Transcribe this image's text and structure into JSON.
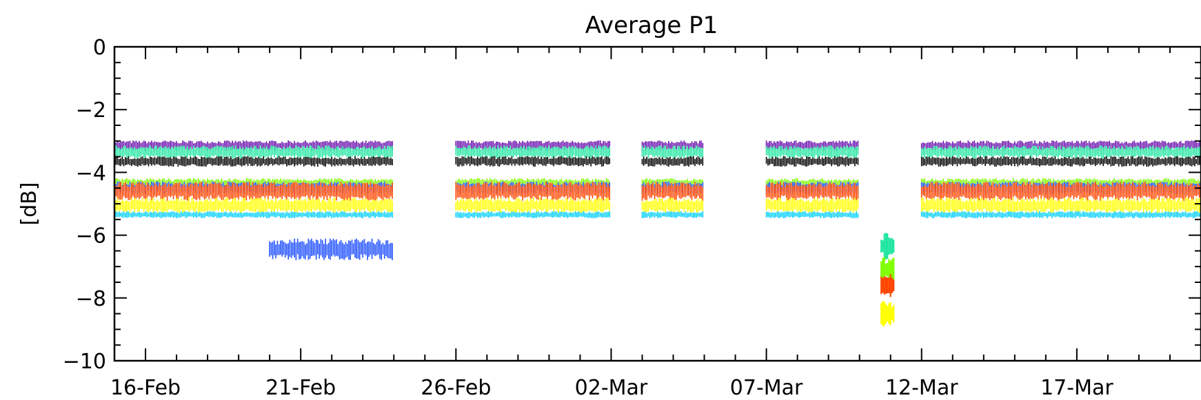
{
  "chart_data": {
    "type": "scatter",
    "title": "Average P1",
    "xlabel": "",
    "ylabel": "[dB]",
    "x_range": [
      "2024-02-15",
      "2024-03-21"
    ],
    "xticks": [
      {
        "date": "2024-02-16",
        "label": "16-Feb"
      },
      {
        "date": "2024-02-21",
        "label": "21-Feb"
      },
      {
        "date": "2024-02-26",
        "label": "26-Feb"
      },
      {
        "date": "2024-03-02",
        "label": "02-Mar"
      },
      {
        "date": "2024-03-07",
        "label": "07-Mar"
      },
      {
        "date": "2024-03-12",
        "label": "12-Mar"
      },
      {
        "date": "2024-03-17",
        "label": "17-Mar"
      }
    ],
    "ylim": [
      -10,
      0
    ],
    "yticks": [
      {
        "value": 0,
        "label": "0"
      },
      {
        "value": -2,
        "label": "−2"
      },
      {
        "value": -4,
        "label": "−4"
      },
      {
        "value": -6,
        "label": "−6"
      },
      {
        "value": -8,
        "label": "−8"
      },
      {
        "value": -10,
        "label": "−10"
      }
    ],
    "gaps": [
      [
        "2024-02-24",
        "2024-02-25"
      ],
      [
        "2024-03-02",
        "2024-03-02"
      ],
      [
        "2024-03-05",
        "2024-03-06"
      ],
      [
        "2024-03-10",
        "2024-03-11"
      ]
    ],
    "series": [
      {
        "color": "#6a0dad",
        "level": -3.15,
        "spread": 0.12,
        "start": "2024-02-15",
        "end": "2024-03-21"
      },
      {
        "color": "#22e6a0",
        "level": -3.35,
        "spread": 0.15,
        "start": "2024-02-15",
        "end": "2024-03-21"
      },
      {
        "color": "#000000",
        "level": -3.65,
        "spread": 0.12,
        "start": "2024-02-15",
        "end": "2024-03-21"
      },
      {
        "color": "#7fff00",
        "level": -4.35,
        "spread": 0.12,
        "start": "2024-02-15",
        "end": "2024-03-21"
      },
      {
        "color": "#1f4fff",
        "level": -4.5,
        "spread": 0.15,
        "start": "2024-02-15",
        "end": "2024-03-21"
      },
      {
        "color": "#ff4500",
        "level": -4.6,
        "spread": 0.22,
        "start": "2024-02-15",
        "end": "2024-03-21"
      },
      {
        "color": "#ffff00",
        "level": -5.05,
        "spread": 0.18,
        "start": "2024-02-15",
        "end": "2024-03-21"
      },
      {
        "color": "#00cfff",
        "level": -5.35,
        "spread": 0.08,
        "start": "2024-02-15",
        "end": "2024-03-21"
      },
      {
        "color": "#1f4fff",
        "level": -6.45,
        "spread": 0.25,
        "start": "2024-02-20",
        "end": "2024-02-23"
      }
    ],
    "outliers": [
      {
        "color": "#22e6a0",
        "level": -6.35,
        "start": "2024-03-10",
        "end": "2024-03-11"
      },
      {
        "color": "#7fff00",
        "level": -7.1,
        "start": "2024-03-10",
        "end": "2024-03-11"
      },
      {
        "color": "#ff4500",
        "level": -7.6,
        "start": "2024-03-10",
        "end": "2024-03-11"
      },
      {
        "color": "#ffff00",
        "level": -8.5,
        "start": "2024-03-10",
        "end": "2024-03-11"
      }
    ]
  }
}
